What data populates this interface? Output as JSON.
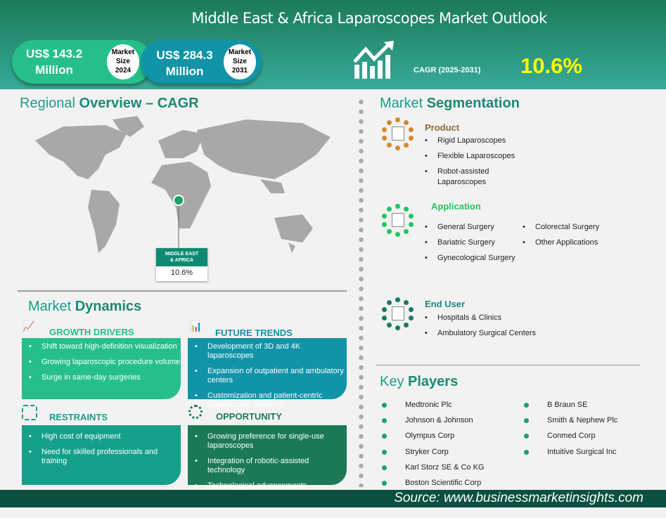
{
  "header": {
    "title": "Middle East & Africa Laparoscopes Market Outlook",
    "size_2024": {
      "value": "US$ 143.2 Million",
      "label": "Market Size 2024",
      "l1": "Market",
      "l2": "Size",
      "l3": "2024",
      "v1": "US$ 143.2",
      "v2": "Million"
    },
    "size_2031": {
      "value": "US$ 284.3 Million",
      "v1": "US$ 284.3",
      "v2": "Million",
      "l1": "Market",
      "l2": "Size",
      "l3": "2031"
    },
    "cagr_label": "CAGR (2025-2031)",
    "cagr_value": "10.6%"
  },
  "regional": {
    "title_light": "Regional",
    "title_bold": "Overview – CAGR",
    "region_label": "MIDDLE EAST & AFRICA",
    "region_l1": "MIDDLE EAST",
    "region_l2": "& AFRICA",
    "region_value": "10.6%"
  },
  "dynamics": {
    "title_light": "Market",
    "title_bold": "Dynamics",
    "growth_drivers": {
      "title": "GROWTH DRIVERS",
      "items": [
        "Shift toward high-definition visualization",
        "Growing laparoscopic procedure volume",
        "Surge in same-day surgeries"
      ]
    },
    "future_trends": {
      "title": "FUTURE TRENDS",
      "items": [
        "Development of 3D and 4K laparoscopes",
        "Expansion of outpatient and ambulatory centers",
        "Customization and patient-centric laparoscopic solutions"
      ]
    },
    "restraints": {
      "title": "RESTRAINTS",
      "items": [
        "High cost of equipment",
        "Need for skilled professionals and training"
      ]
    },
    "opportunity": {
      "title": "OPPORTUNITY",
      "items": [
        "Growing preference for single-use laparoscopes",
        "Integration of robotic-assisted technology",
        "Technological advancements"
      ]
    }
  },
  "segmentation": {
    "title_light": "Market",
    "title_bold": "Segmentation",
    "product": {
      "title": "Product",
      "color": "#d4892a",
      "items": [
        "Rigid Laparoscopes",
        "Flexible Laparoscopes",
        "Robot-assisted Laparoscopes"
      ]
    },
    "application": {
      "title": "Application",
      "color": "#22c55e",
      "items": [
        "General Surgery",
        "Bariatric Surgery",
        "Gynecological Surgery",
        "Colorectal Surgery",
        "Other Applications"
      ]
    },
    "end_user": {
      "title": "End User",
      "color": "#1a7a64",
      "items": [
        "Hospitals & Clinics",
        "Ambulatory Surgical Centers"
      ]
    }
  },
  "key_players": {
    "title_light": "Key",
    "title_bold": "Players",
    "items": [
      "Medtronic Plc",
      "Johnson & Johnson",
      "Olympus Corp",
      "Stryker Corp",
      "Karl Storz SE & Co KG",
      "Boston Scientific Corp",
      "B Braun SE",
      "Smith & Nephew Plc",
      "Conmed Corp",
      "Intuitive Surgical Inc"
    ]
  },
  "footer": {
    "source": "Source: www.businessmarketinsights.com"
  },
  "colors": {
    "green": "#25c08a",
    "blue": "#1193a8",
    "teal": "#16a08a",
    "dark_green": "#1b7a55",
    "yellow": "#ffff00",
    "footer": "#0a4f40"
  }
}
